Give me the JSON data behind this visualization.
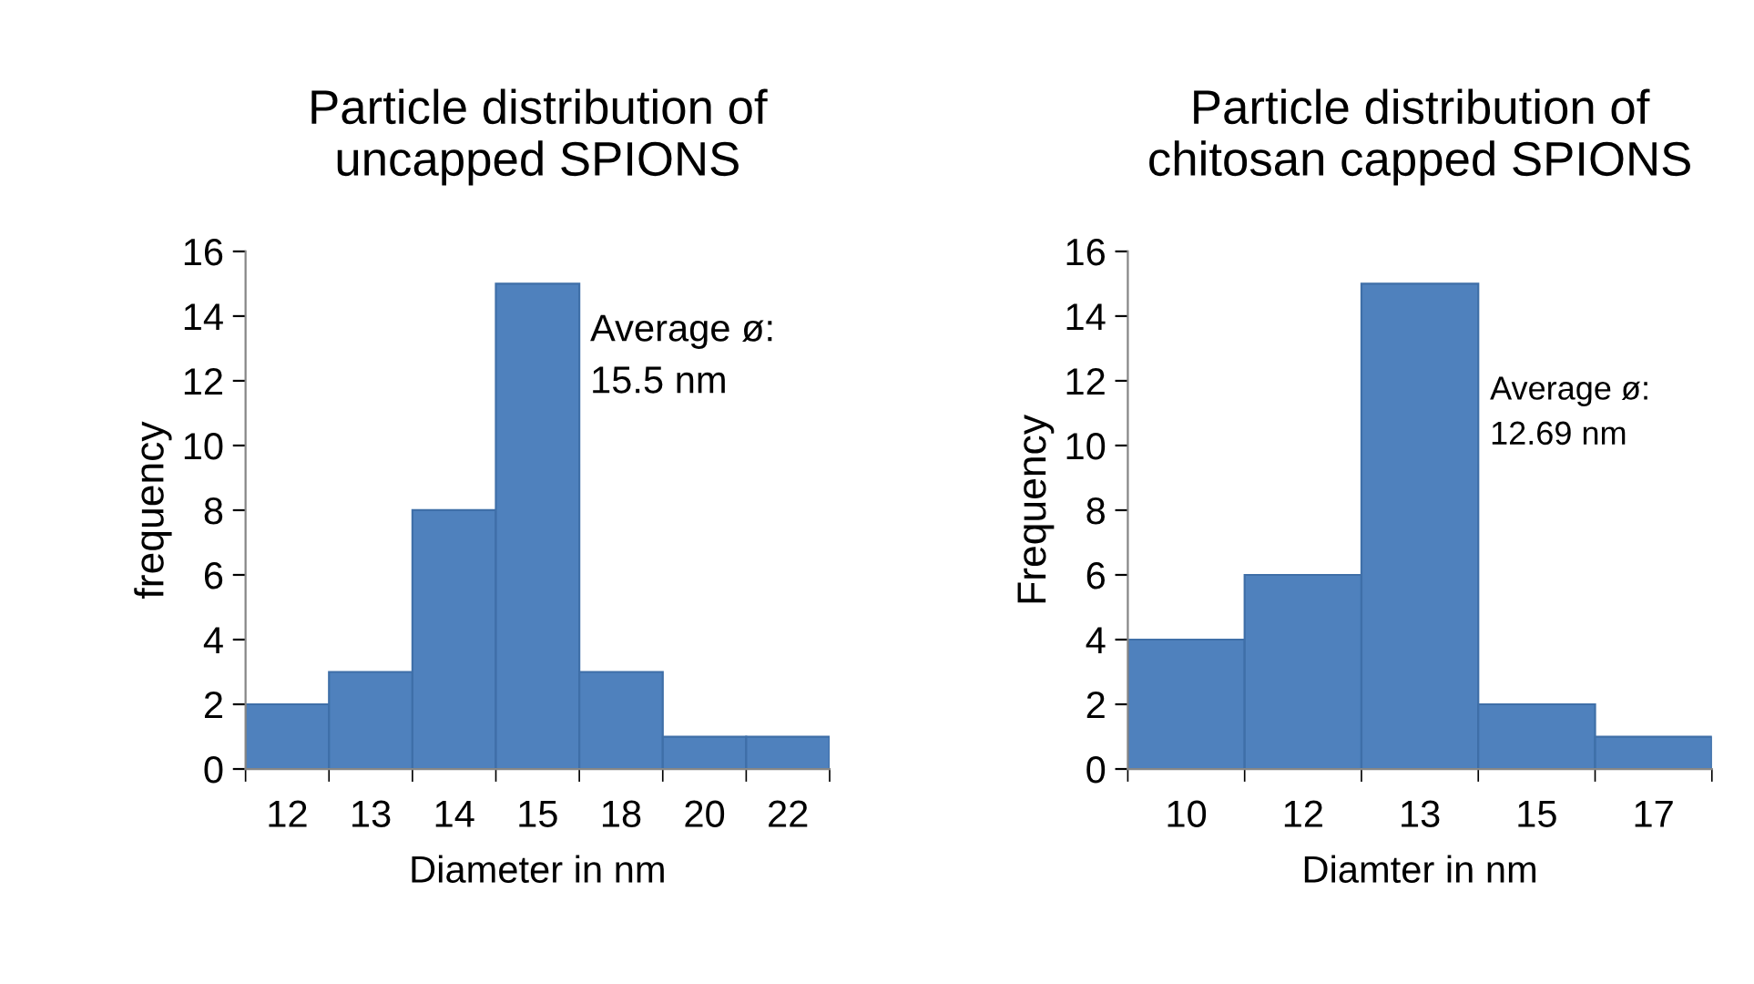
{
  "chart_data": [
    {
      "type": "bar",
      "title": "Particle distribution of\nuncapped SPIONS",
      "xlabel": "Diameter in nm",
      "ylabel": "frequency",
      "categories": [
        "12",
        "13",
        "14",
        "15",
        "18",
        "20",
        "22"
      ],
      "values": [
        2,
        3,
        8,
        15,
        3,
        1,
        1
      ],
      "color": "#4f81bd",
      "ylim": [
        0,
        16
      ],
      "yticks": [
        0,
        2,
        4,
        6,
        8,
        10,
        12,
        14,
        16
      ],
      "grid": false,
      "annotations": [
        "Average ø:\n15.5 nm"
      ]
    },
    {
      "type": "bar",
      "title": "Particle distribution of\nchitosan capped SPIONS",
      "xlabel": "Diamter in nm",
      "ylabel": "Frequency",
      "categories": [
        "10",
        "12",
        "13",
        "15",
        "17"
      ],
      "values": [
        4,
        6,
        15,
        2,
        1
      ],
      "color": "#4f81bd",
      "ylim": [
        0,
        16
      ],
      "yticks": [
        0,
        2,
        4,
        6,
        8,
        10,
        12,
        14,
        16
      ],
      "grid": false,
      "annotations": [
        "Average ø:\n12.69 nm"
      ]
    }
  ]
}
